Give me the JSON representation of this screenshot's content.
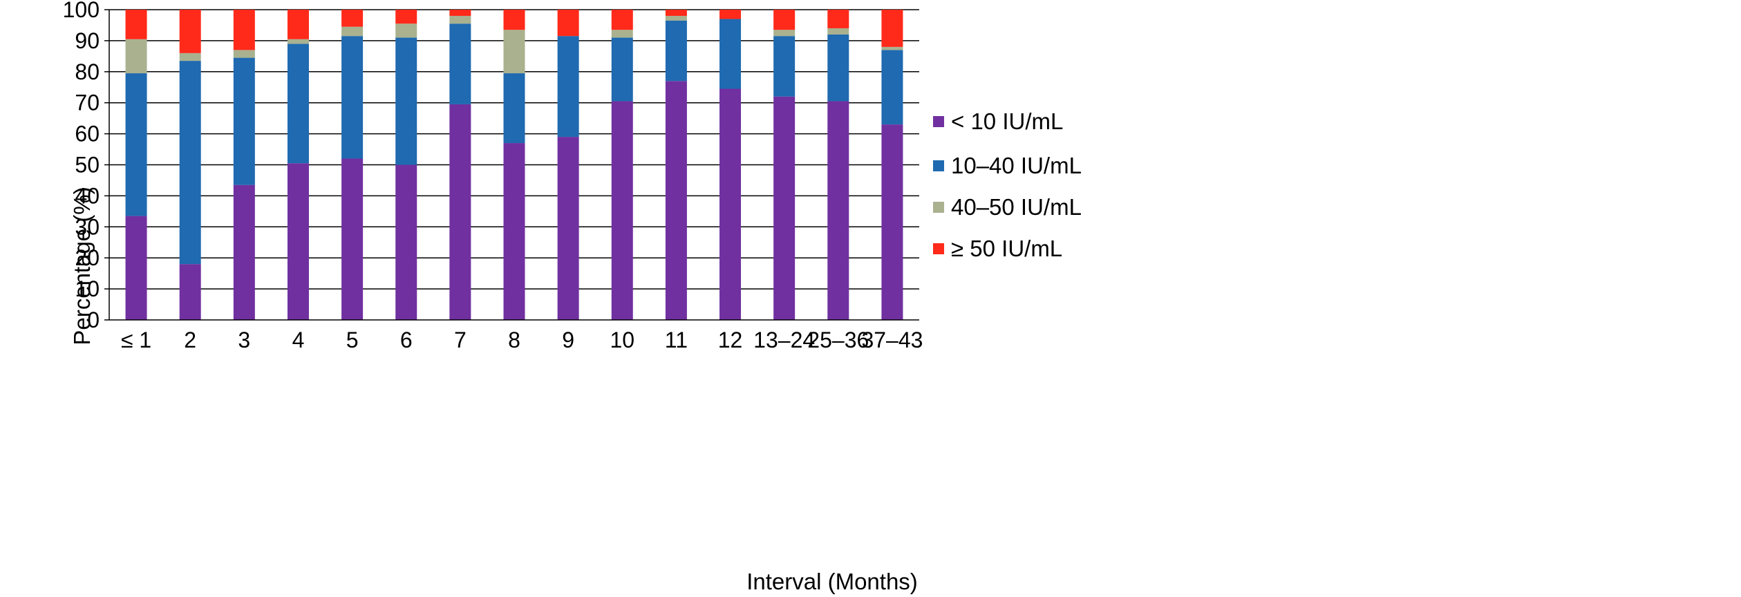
{
  "chart_data": {
    "type": "bar",
    "stacked": true,
    "title": "",
    "xlabel": "Interval (Months)",
    "ylabel": "Percentage (%)",
    "ylim": [
      0,
      100
    ],
    "yticks": [
      0,
      10,
      20,
      30,
      40,
      50,
      60,
      70,
      80,
      90,
      100
    ],
    "grid": "horizontal",
    "legend_position": "right",
    "categories": [
      "≤ 1",
      "2",
      "3",
      "4",
      "5",
      "6",
      "7",
      "8",
      "9",
      "10",
      "11",
      "12",
      "13–24",
      "25–36",
      "37–43"
    ],
    "series": [
      {
        "name": "< 10 IU/mL",
        "color": "#7030A0",
        "values": [
          33.5,
          18,
          43.5,
          50.5,
          52,
          50,
          69.5,
          57,
          59,
          70.5,
          77,
          74.5,
          72,
          70.5,
          63
        ]
      },
      {
        "name": "10–40 IU/mL",
        "color": "#1F6AB0",
        "values": [
          46,
          65.5,
          41,
          38.5,
          39.5,
          41,
          26,
          22.5,
          32.5,
          20.5,
          19.5,
          22.5,
          19.5,
          21.5,
          24
        ]
      },
      {
        "name": "40–50 IU/mL",
        "color": "#A9B18F",
        "values": [
          11,
          2.5,
          2.5,
          1.5,
          3,
          4.5,
          2.5,
          14,
          0,
          2.5,
          1.5,
          0,
          2,
          2,
          1
        ]
      },
      {
        "name": "≥ 50 IU/mL",
        "color": "#FF2A1A",
        "values": [
          9.5,
          14,
          13,
          9.5,
          5.5,
          4.5,
          2,
          6.5,
          8.5,
          6.5,
          2,
          3,
          6.5,
          6,
          12
        ]
      }
    ]
  }
}
